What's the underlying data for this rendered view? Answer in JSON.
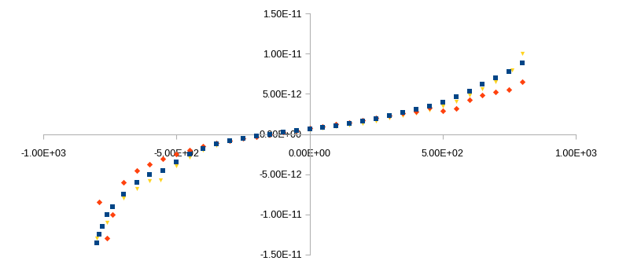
{
  "chart_data": {
    "type": "scatter",
    "xlim": [
      -1000,
      1000
    ],
    "ylim": [
      -1.5e-11,
      1.5e-11
    ],
    "xticks": [
      {
        "value": -1000,
        "label": "-1.00E+03"
      },
      {
        "value": -500,
        "label": "-5.00E+02"
      },
      {
        "value": 0,
        "label": "0.00E+00"
      },
      {
        "value": 500,
        "label": "5.00E+02"
      },
      {
        "value": 1000,
        "label": "1.00E+03"
      }
    ],
    "yticks": [
      {
        "value": -1.5e-11,
        "label": "-1.50E-11"
      },
      {
        "value": -1e-11,
        "label": "-1.00E-11"
      },
      {
        "value": -5e-12,
        "label": "-5.00E-12"
      },
      {
        "value": 0,
        "label": "0.00E+00"
      },
      {
        "value": 5e-12,
        "label": "5.00E-12"
      },
      {
        "value": 1e-11,
        "label": "1.00E-11"
      },
      {
        "value": 1.5e-11,
        "label": "1.50E-11"
      }
    ],
    "grid": false,
    "series": [
      {
        "color": "#ffd320",
        "marker": "triangle",
        "x": [
          -800,
          -760,
          -700,
          -650,
          -600,
          -560,
          -500,
          -450,
          -400,
          -350,
          -300,
          -250,
          -200,
          -150,
          -100,
          -50,
          0,
          50,
          100,
          150,
          200,
          250,
          300,
          350,
          400,
          450,
          500,
          550,
          600,
          650,
          700,
          760,
          800
        ],
        "values": [
          -1.3e-11,
          -1.1e-11,
          -8e-12,
          -6.8e-12,
          -5.8e-12,
          -5.7e-12,
          -4e-12,
          -2.9e-12,
          -2e-12,
          -1.4e-12,
          -9e-13,
          -5e-13,
          -2e-13,
          0,
          2e-13,
          3.5e-13,
          5e-13,
          7e-13,
          9e-13,
          1.1e-12,
          1.3e-12,
          1.6e-12,
          2e-12,
          2.3e-12,
          2.6e-12,
          3e-12,
          3.5e-12,
          4.1e-12,
          4.8e-12,
          5.6e-12,
          6.5e-12,
          8e-12,
          1e-11
        ]
      },
      {
        "color": "#ff420e",
        "marker": "diamond",
        "x": [
          -790,
          -760,
          -740,
          -700,
          -650,
          -600,
          -550,
          -500,
          -450,
          -400,
          -350,
          -300,
          -250,
          -200,
          -150,
          -100,
          -50,
          0,
          50,
          100,
          150,
          200,
          250,
          300,
          350,
          400,
          450,
          500,
          550,
          600,
          650,
          700,
          750,
          800
        ],
        "values": [
          -8.5e-12,
          -1.3e-11,
          -1e-11,
          -6e-12,
          -4.5e-12,
          -3.8e-12,
          -3.1e-12,
          -2.5e-12,
          -2e-12,
          -1.5e-12,
          -1.1e-12,
          -8e-13,
          -5e-13,
          -3e-13,
          0,
          2e-13,
          4.5e-13,
          7e-13,
          9.5e-13,
          1.2e-12,
          1.45e-12,
          1.7e-12,
          2e-12,
          2.3e-12,
          2.55e-12,
          2.8e-12,
          3.3e-12,
          2.9e-12,
          3.2e-12,
          4.3e-12,
          4.8e-12,
          5.2e-12,
          5.5e-12,
          6.5e-12
        ]
      },
      {
        "color": "#004586",
        "marker": "square",
        "x": [
          -800,
          -790,
          -780,
          -760,
          -740,
          -700,
          -650,
          -600,
          -550,
          -500,
          -450,
          -400,
          -350,
          -300,
          -250,
          -200,
          -150,
          -100,
          -50,
          0,
          50,
          100,
          150,
          200,
          250,
          300,
          350,
          400,
          450,
          500,
          550,
          600,
          650,
          700,
          750,
          800
        ],
        "values": [
          -1.35e-11,
          -1.25e-11,
          -1.15e-11,
          -1e-11,
          -9e-12,
          -7.5e-12,
          -6e-12,
          -5e-12,
          -4.5e-12,
          -3.5e-12,
          -2.5e-12,
          -1.8e-12,
          -1.2e-12,
          -8e-13,
          -5e-13,
          -2e-13,
          0,
          2e-13,
          4e-13,
          6e-13,
          8e-13,
          1e-12,
          1.3e-12,
          1.6e-12,
          1.9e-12,
          2.3e-12,
          2.7e-12,
          3.1e-12,
          3.5e-12,
          4e-12,
          4.6e-12,
          5.3e-12,
          6.2e-12,
          7e-12,
          7.8e-12,
          8.8e-12
        ]
      }
    ]
  }
}
